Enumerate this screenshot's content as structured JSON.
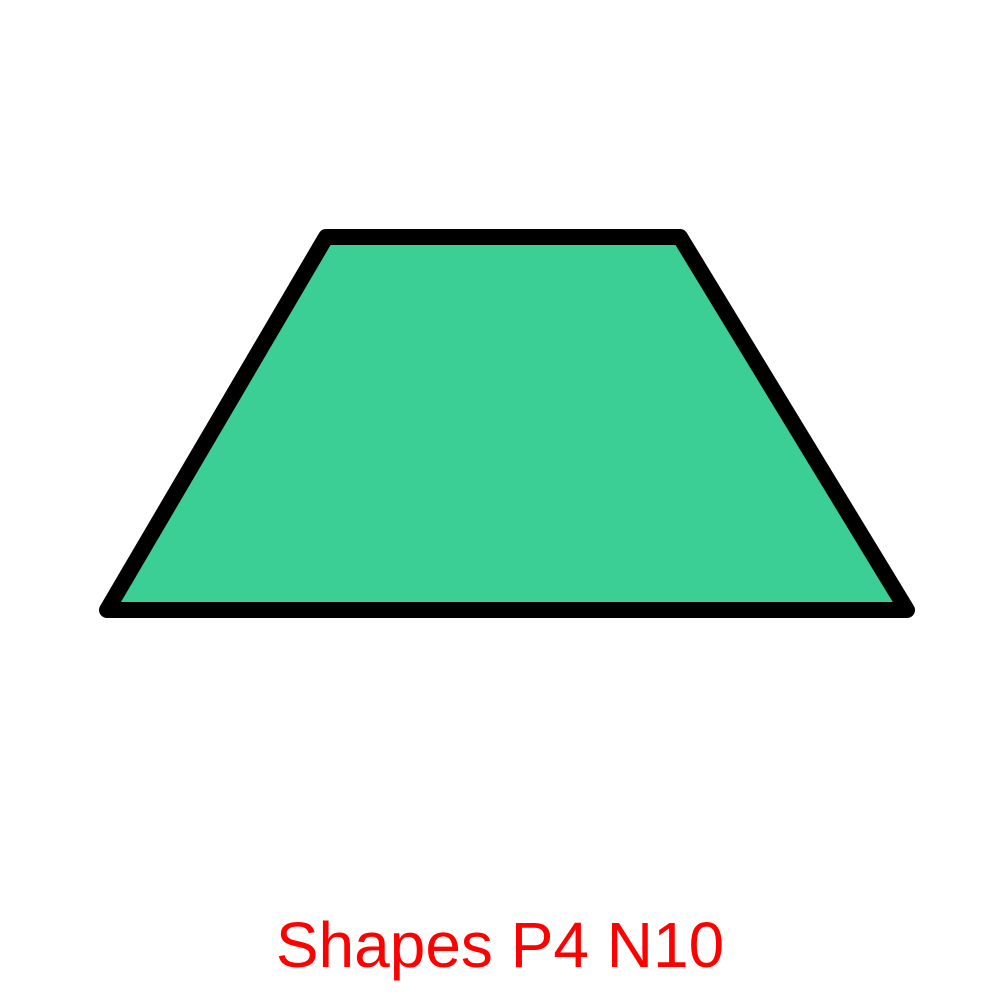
{
  "shape": {
    "kind": "trapezoid",
    "fill_color": "#3ccf95",
    "stroke_color": "#000000"
  },
  "caption": {
    "text": "Shapes P4 N10",
    "color": "#ff0000"
  }
}
